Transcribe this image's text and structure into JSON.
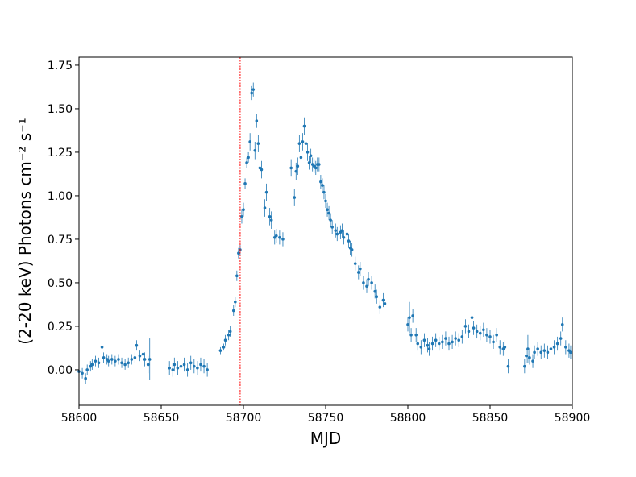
{
  "chart_data": {
    "type": "errorbar-scatter",
    "xlabel": "MJD",
    "ylabel": "(2-20 keV) Photons cm⁻² s⁻¹",
    "xlim": [
      58600,
      58900
    ],
    "ylim": [
      -0.204,
      1.796
    ],
    "xticks": [
      58600,
      58650,
      58700,
      58750,
      58800,
      58850,
      58900
    ],
    "yticks": [
      {
        "value": 0,
        "label": "0.00"
      },
      {
        "value": 0.25,
        "label": "0.25"
      },
      {
        "value": 0.5,
        "label": "0.50"
      },
      {
        "value": 0.75,
        "label": "0.75"
      },
      {
        "value": 1,
        "label": "1.00"
      },
      {
        "value": 1.25,
        "label": "1.25"
      },
      {
        "value": 1.5,
        "label": "1.50"
      },
      {
        "value": 1.75,
        "label": "1.75"
      }
    ],
    "vline": {
      "x": 58698,
      "color": "#ff0000"
    },
    "series": [
      {
        "color": "#1f77b4",
        "x": [
          58600,
          58602,
          58604,
          58605,
          58607,
          58608,
          58610,
          58612,
          58614,
          58615,
          58617,
          58618,
          58620,
          58622,
          58624,
          58626,
          58628,
          58630,
          58632,
          58634,
          58635,
          58637,
          58639,
          58640,
          58642,
          58643,
          58655,
          58657,
          58658,
          58660,
          58662,
          58664,
          58666,
          58668,
          58670,
          58672,
          58674,
          58676,
          58678,
          58686,
          58688,
          58689,
          58691,
          58692,
          58694,
          58695,
          58696,
          58697,
          58698,
          58699,
          58700,
          58701,
          58702,
          58703,
          58704,
          58705,
          58706,
          58707,
          58708,
          58709,
          58710,
          58711,
          58713,
          58714,
          58716,
          58717,
          58719,
          58720,
          58722,
          58724,
          58729,
          58731,
          58732,
          58733,
          58734,
          58735,
          58736,
          58737,
          58738,
          58739,
          58740,
          58741,
          58742,
          58743,
          58744,
          58745,
          58746,
          58747,
          58748,
          58749,
          58750,
          58751,
          58752,
          58753,
          58754,
          58756,
          58757,
          58759,
          58760,
          58761,
          58763,
          58764,
          58765,
          58766,
          58768,
          58770,
          58771,
          58773,
          58775,
          58776,
          58778,
          58780,
          58781,
          58783,
          58785,
          58786,
          58800,
          58801,
          58802,
          58803,
          58805,
          58806,
          58808,
          58810,
          58812,
          58813,
          58815,
          58817,
          58819,
          58821,
          58823,
          58825,
          58827,
          58829,
          58831,
          58833,
          58835,
          58837,
          58839,
          58840,
          58842,
          58844,
          58846,
          58848,
          58850,
          58852,
          58854,
          58856,
          58858,
          58859,
          58861,
          58871,
          58872,
          58873,
          58874,
          58876,
          58877,
          58879,
          58881,
          58883,
          58885,
          58887,
          58889,
          58891,
          58893,
          58894,
          58896,
          58898,
          58899
        ],
        "values": [
          -0.01,
          -0.02,
          -0.05,
          0.0,
          0.02,
          0.03,
          0.05,
          0.04,
          0.13,
          0.07,
          0.06,
          0.05,
          0.06,
          0.05,
          0.06,
          0.04,
          0.03,
          0.04,
          0.06,
          0.07,
          0.14,
          0.08,
          0.09,
          0.06,
          0.03,
          0.06,
          0.01,
          0.0,
          0.03,
          0.01,
          0.02,
          0.03,
          0.0,
          0.04,
          0.02,
          0.01,
          0.03,
          0.02,
          0.0,
          0.11,
          0.13,
          0.17,
          0.2,
          0.22,
          0.34,
          0.39,
          0.54,
          0.67,
          0.69,
          0.88,
          0.92,
          1.07,
          1.19,
          1.22,
          1.31,
          1.59,
          1.61,
          1.26,
          1.43,
          1.3,
          1.16,
          1.15,
          0.93,
          1.02,
          0.88,
          0.86,
          0.76,
          0.77,
          0.76,
          0.75,
          1.16,
          0.99,
          1.14,
          1.17,
          1.3,
          1.22,
          1.31,
          1.4,
          1.3,
          1.25,
          1.19,
          1.23,
          1.18,
          1.17,
          1.16,
          1.18,
          1.18,
          1.08,
          1.06,
          1.02,
          0.97,
          0.92,
          0.9,
          0.86,
          0.82,
          0.8,
          0.78,
          0.79,
          0.8,
          0.76,
          0.78,
          0.74,
          0.7,
          0.69,
          0.61,
          0.56,
          0.58,
          0.5,
          0.48,
          0.52,
          0.5,
          0.45,
          0.42,
          0.36,
          0.4,
          0.38,
          0.26,
          0.3,
          0.2,
          0.31,
          0.2,
          0.15,
          0.13,
          0.17,
          0.14,
          0.12,
          0.15,
          0.17,
          0.15,
          0.16,
          0.18,
          0.15,
          0.16,
          0.18,
          0.17,
          0.19,
          0.25,
          0.22,
          0.3,
          0.24,
          0.22,
          0.21,
          0.23,
          0.2,
          0.19,
          0.16,
          0.2,
          0.13,
          0.12,
          0.13,
          0.02,
          0.02,
          0.08,
          0.12,
          0.07,
          0.05,
          0.1,
          0.12,
          0.1,
          0.11,
          0.1,
          0.12,
          0.13,
          0.15,
          0.18,
          0.26,
          0.13,
          0.11,
          0.1
        ],
        "errors": [
          0.03,
          0.03,
          0.03,
          0.03,
          0.03,
          0.03,
          0.03,
          0.03,
          0.03,
          0.03,
          0.03,
          0.03,
          0.03,
          0.03,
          0.03,
          0.03,
          0.03,
          0.03,
          0.03,
          0.03,
          0.03,
          0.03,
          0.03,
          0.04,
          0.05,
          0.12,
          0.04,
          0.04,
          0.04,
          0.04,
          0.04,
          0.04,
          0.04,
          0.04,
          0.04,
          0.04,
          0.04,
          0.04,
          0.04,
          0.02,
          0.02,
          0.03,
          0.03,
          0.03,
          0.03,
          0.03,
          0.03,
          0.03,
          0.03,
          0.04,
          0.04,
          0.03,
          0.03,
          0.03,
          0.05,
          0.04,
          0.04,
          0.05,
          0.04,
          0.05,
          0.05,
          0.05,
          0.05,
          0.05,
          0.05,
          0.05,
          0.04,
          0.04,
          0.04,
          0.04,
          0.05,
          0.05,
          0.05,
          0.05,
          0.05,
          0.05,
          0.05,
          0.05,
          0.05,
          0.05,
          0.04,
          0.04,
          0.04,
          0.04,
          0.04,
          0.04,
          0.04,
          0.04,
          0.04,
          0.04,
          0.04,
          0.04,
          0.04,
          0.04,
          0.04,
          0.04,
          0.04,
          0.04,
          0.04,
          0.04,
          0.04,
          0.04,
          0.04,
          0.04,
          0.04,
          0.04,
          0.04,
          0.04,
          0.04,
          0.04,
          0.04,
          0.04,
          0.04,
          0.04,
          0.04,
          0.04,
          0.04,
          0.09,
          0.04,
          0.04,
          0.04,
          0.04,
          0.04,
          0.04,
          0.04,
          0.04,
          0.04,
          0.04,
          0.04,
          0.04,
          0.04,
          0.04,
          0.04,
          0.04,
          0.04,
          0.04,
          0.04,
          0.04,
          0.04,
          0.04,
          0.04,
          0.04,
          0.04,
          0.04,
          0.04,
          0.04,
          0.04,
          0.04,
          0.04,
          0.04,
          0.04,
          0.04,
          0.04,
          0.08,
          0.04,
          0.04,
          0.04,
          0.04,
          0.04,
          0.04,
          0.04,
          0.04,
          0.04,
          0.04,
          0.04,
          0.04,
          0.04,
          0.04,
          0.04
        ]
      }
    ]
  }
}
